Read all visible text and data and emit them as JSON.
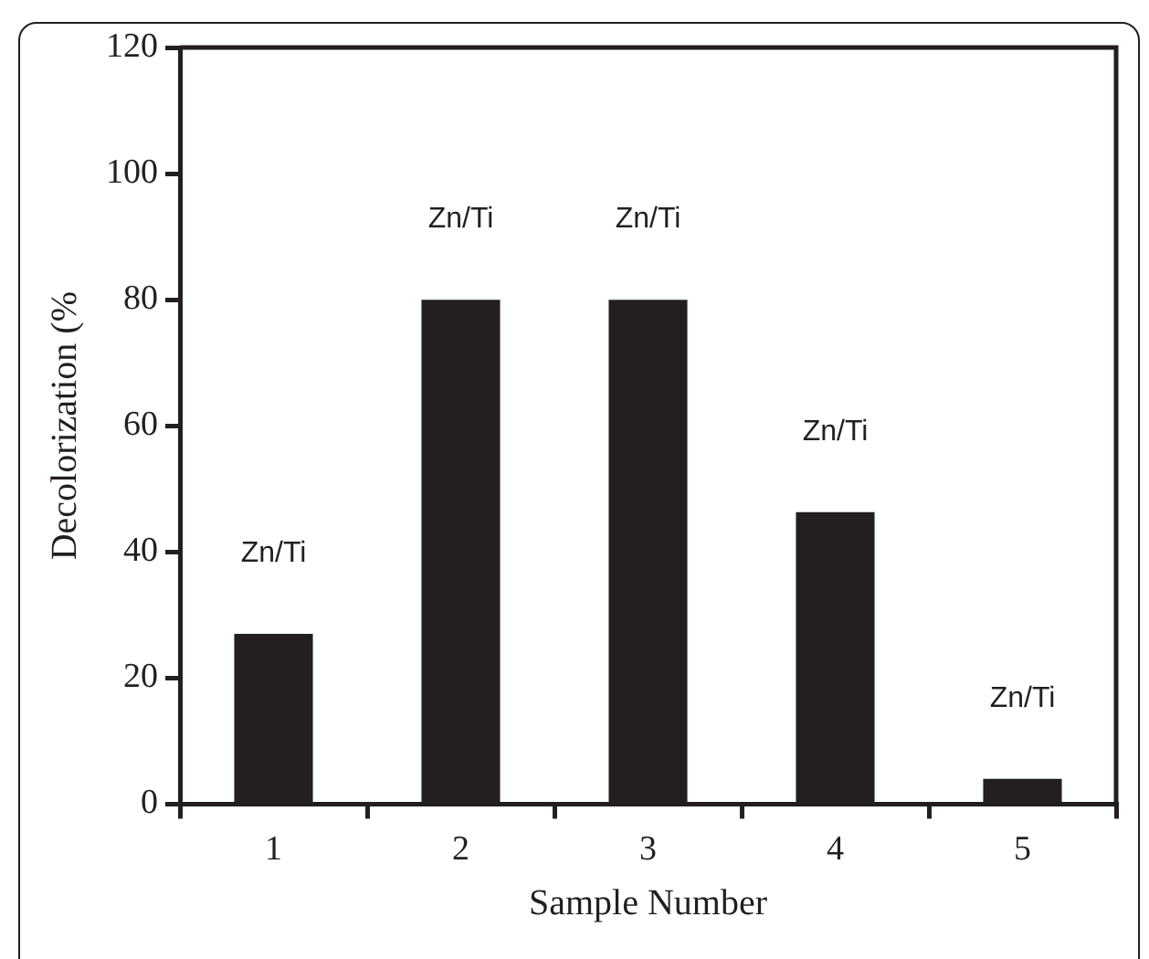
{
  "chart_data": {
    "type": "bar",
    "xlabel": "Sample Number",
    "ylabel": "Decolorization (%",
    "categories": [
      "1",
      "2",
      "3",
      "4",
      "5"
    ],
    "values": [
      27,
      80,
      80,
      46.3,
      4
    ],
    "color": "#231f20",
    "ylim": [
      0,
      120
    ],
    "yticks": [
      0,
      20,
      40,
      60,
      80,
      100,
      120
    ],
    "grid": false,
    "legend": false,
    "annotations": [
      "Zn/Ti",
      "Zn/Ti",
      "Zn/Ti",
      "Zn/Ti",
      "Zn/Ti"
    ]
  }
}
